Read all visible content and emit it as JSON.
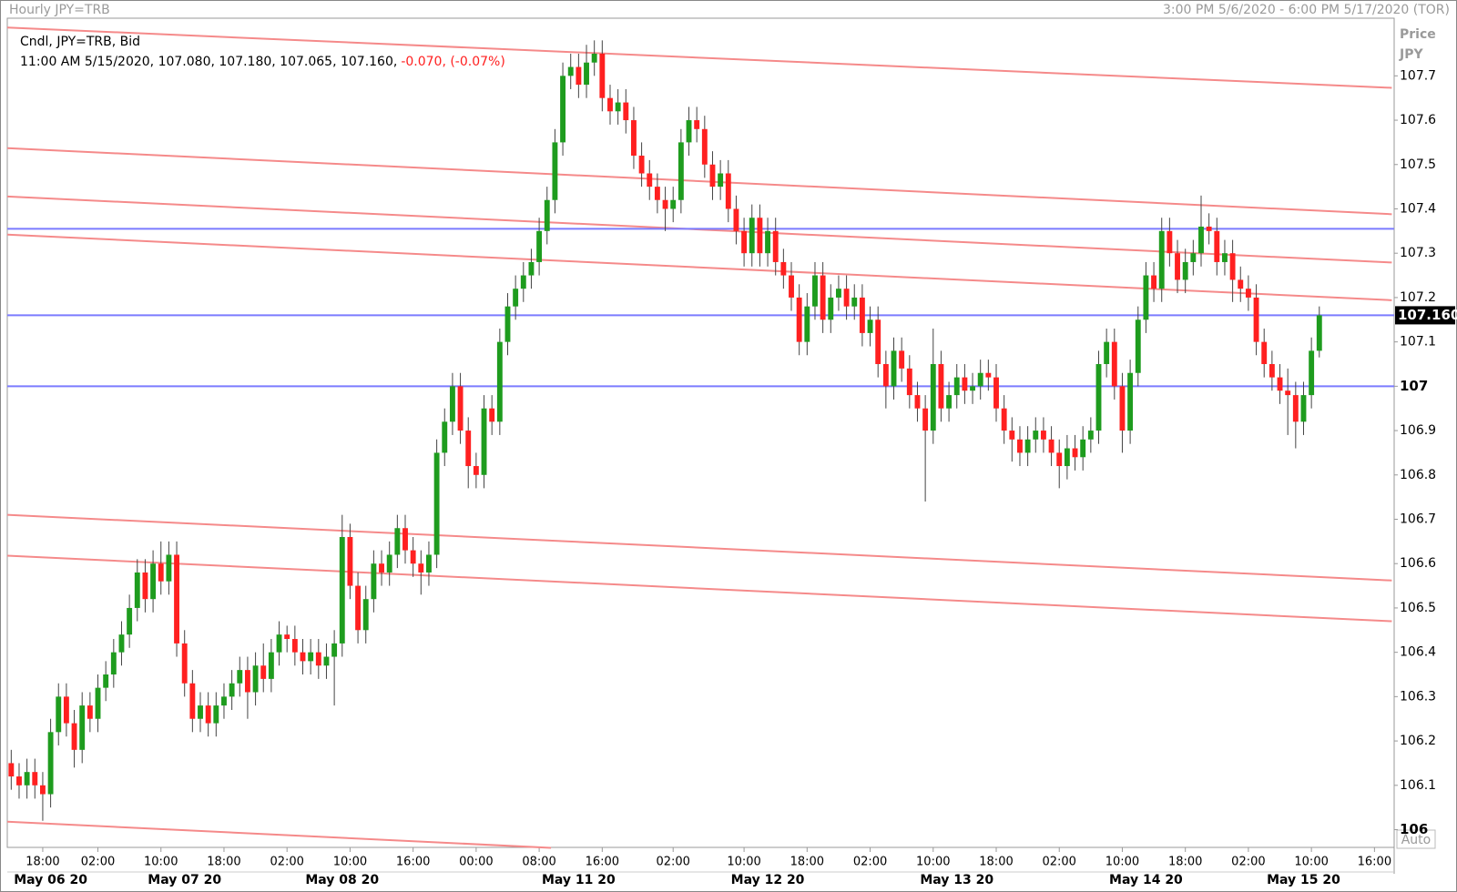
{
  "chart_data": {
    "type": "candlestick",
    "title": "Hourly JPY=TRB",
    "range_label": "3:00 PM 5/6/2020 - 6:00 PM 5/17/2020 (TOR)",
    "series_label": "Cndl, JPY=TRB, Bid",
    "ohlc_label": "11:00 AM 5/15/2020, 107.080, 107.180, 107.065, 107.160,",
    "change_label": "-0.070, (-0.07%)",
    "axis_title": "Price",
    "axis_unit": "JPY",
    "scale_label": "Auto",
    "up_color": "#1e9c1e",
    "down_color": "#ff2020",
    "line_color": "#f58a8a",
    "level_color": "#7b7bff",
    "open": [
      106.15,
      106.12,
      106.1,
      106.13,
      106.1,
      106.08,
      106.22,
      106.3,
      106.24,
      106.18,
      106.28,
      106.25,
      106.32,
      106.35,
      106.4,
      106.44,
      106.5,
      106.58,
      106.52,
      106.6,
      106.56,
      106.62,
      106.42,
      106.33,
      106.25,
      106.28,
      106.24,
      106.28,
      106.3,
      106.33,
      106.36,
      106.31,
      106.37,
      106.34,
      106.4,
      106.44,
      106.43,
      106.4,
      106.38,
      106.4,
      106.37,
      106.39,
      106.42,
      106.66,
      106.55,
      106.45,
      106.52,
      106.6,
      106.58,
      106.62,
      106.68,
      106.63,
      106.6,
      106.58,
      106.62,
      106.85,
      106.92,
      107.0,
      106.9,
      106.82,
      106.8,
      106.95,
      106.92,
      107.1,
      107.18,
      107.22,
      107.25,
      107.28,
      107.35,
      107.42,
      107.55,
      107.7,
      107.72,
      107.68,
      107.73,
      107.75,
      107.65,
      107.62,
      107.64,
      107.6,
      107.52,
      107.48,
      107.45,
      107.42,
      107.4,
      107.42,
      107.55,
      107.6,
      107.58,
      107.5,
      107.45,
      107.48,
      107.4,
      107.35,
      107.3,
      107.38,
      107.3,
      107.35,
      107.28,
      107.25,
      107.2,
      107.1,
      107.18,
      107.25,
      107.15,
      107.2,
      107.22,
      107.18,
      107.2,
      107.12,
      107.15,
      107.05,
      107.0,
      107.08,
      107.04,
      106.98,
      106.95,
      106.9,
      107.05,
      106.95,
      106.98,
      107.02,
      106.99,
      107.0,
      107.03,
      107.02,
      106.95,
      106.9,
      106.88,
      106.85,
      106.88,
      106.9,
      106.88,
      106.85,
      106.82,
      106.86,
      106.84,
      106.88,
      106.9,
      107.05,
      107.1,
      107.0,
      106.9,
      107.03,
      107.15,
      107.25,
      107.22,
      107.35,
      107.3,
      107.24,
      107.28,
      107.3,
      107.36,
      107.35,
      107.28,
      107.3,
      107.24,
      107.22,
      107.2,
      107.1,
      107.05,
      107.02,
      106.99,
      106.98,
      106.92,
      106.98,
      107.08
    ],
    "high": [
      106.18,
      106.15,
      106.16,
      106.16,
      106.13,
      106.25,
      106.33,
      106.33,
      106.27,
      106.31,
      106.31,
      106.35,
      106.38,
      106.43,
      106.47,
      106.53,
      106.61,
      106.61,
      106.63,
      106.65,
      106.65,
      106.65,
      106.45,
      106.36,
      106.31,
      106.31,
      106.31,
      106.33,
      106.36,
      106.39,
      106.39,
      106.4,
      106.42,
      106.43,
      106.47,
      106.46,
      106.46,
      106.43,
      106.43,
      106.43,
      106.42,
      106.45,
      106.71,
      106.69,
      106.58,
      106.55,
      106.63,
      106.63,
      106.65,
      106.71,
      106.71,
      106.66,
      106.63,
      106.65,
      106.88,
      106.95,
      107.03,
      107.03,
      106.93,
      106.85,
      106.98,
      106.98,
      107.13,
      107.21,
      107.25,
      107.28,
      107.31,
      107.38,
      107.45,
      107.58,
      107.73,
      107.75,
      107.75,
      107.77,
      107.78,
      107.78,
      107.68,
      107.67,
      107.67,
      107.63,
      107.55,
      107.51,
      107.48,
      107.45,
      107.45,
      107.58,
      107.63,
      107.63,
      107.61,
      107.53,
      107.51,
      107.51,
      107.43,
      107.38,
      107.41,
      107.41,
      107.38,
      107.38,
      107.31,
      107.28,
      107.23,
      107.21,
      107.28,
      107.28,
      107.23,
      107.25,
      107.25,
      107.23,
      107.23,
      107.18,
      107.18,
      107.08,
      107.11,
      107.11,
      107.07,
      107.01,
      106.98,
      107.13,
      107.08,
      107.01,
      107.05,
      107.05,
      107.03,
      107.06,
      107.06,
      107.05,
      106.98,
      106.93,
      106.91,
      106.91,
      106.93,
      106.93,
      106.91,
      106.88,
      106.89,
      106.89,
      106.91,
      106.93,
      107.08,
      107.13,
      107.13,
      107.03,
      107.06,
      107.18,
      107.28,
      107.28,
      107.38,
      107.38,
      107.33,
      107.31,
      107.33,
      107.43,
      107.39,
      107.38,
      107.33,
      107.33,
      107.27,
      107.25,
      107.23,
      107.13,
      107.08,
      107.05,
      107.04,
      107.01,
      107.01,
      107.11,
      107.18
    ],
    "low": [
      106.09,
      106.07,
      106.07,
      106.07,
      106.02,
      106.05,
      106.19,
      106.21,
      106.14,
      106.15,
      106.22,
      106.22,
      106.29,
      106.32,
      106.37,
      106.41,
      106.47,
      106.49,
      106.49,
      106.53,
      106.53,
      106.39,
      106.3,
      106.22,
      106.22,
      106.21,
      106.21,
      106.25,
      106.27,
      106.3,
      106.25,
      106.28,
      106.31,
      106.31,
      106.37,
      106.4,
      106.37,
      106.35,
      106.35,
      106.34,
      106.34,
      106.28,
      106.39,
      106.52,
      106.42,
      106.42,
      106.49,
      106.55,
      106.55,
      106.59,
      106.6,
      106.57,
      106.53,
      106.55,
      106.59,
      106.82,
      106.89,
      106.87,
      106.77,
      106.77,
      106.77,
      106.89,
      106.89,
      107.07,
      107.15,
      107.19,
      107.22,
      107.25,
      107.32,
      107.39,
      107.52,
      107.67,
      107.65,
      107.65,
      107.7,
      107.62,
      107.59,
      107.59,
      107.57,
      107.49,
      107.45,
      107.42,
      107.39,
      107.35,
      107.37,
      107.39,
      107.52,
      107.55,
      107.47,
      107.42,
      107.42,
      107.37,
      107.32,
      107.27,
      107.27,
      107.27,
      107.27,
      107.25,
      107.22,
      107.17,
      107.07,
      107.07,
      107.15,
      107.12,
      107.12,
      107.17,
      107.15,
      107.15,
      107.09,
      107.09,
      107.02,
      106.95,
      106.97,
      107.01,
      106.95,
      106.92,
      106.74,
      106.87,
      106.92,
      106.92,
      106.95,
      106.96,
      106.96,
      106.97,
      106.99,
      106.92,
      106.87,
      106.83,
      106.82,
      106.82,
      106.85,
      106.85,
      106.82,
      106.77,
      106.79,
      106.81,
      106.81,
      106.85,
      106.87,
      107.02,
      106.97,
      106.85,
      106.87,
      107.0,
      107.12,
      107.19,
      107.19,
      107.27,
      107.21,
      107.21,
      107.25,
      107.27,
      107.32,
      107.25,
      107.25,
      107.19,
      107.19,
      107.17,
      107.07,
      107.02,
      106.99,
      106.96,
      106.89,
      106.86,
      106.89,
      106.95,
      107.065
    ],
    "close": [
      106.12,
      106.1,
      106.13,
      106.1,
      106.08,
      106.22,
      106.3,
      106.24,
      106.18,
      106.28,
      106.25,
      106.32,
      106.35,
      106.4,
      106.44,
      106.5,
      106.58,
      106.52,
      106.6,
      106.56,
      106.62,
      106.42,
      106.33,
      106.25,
      106.28,
      106.24,
      106.28,
      106.3,
      106.33,
      106.36,
      106.31,
      106.37,
      106.34,
      106.4,
      106.44,
      106.43,
      106.4,
      106.38,
      106.4,
      106.37,
      106.39,
      106.42,
      106.66,
      106.55,
      106.45,
      106.52,
      106.6,
      106.58,
      106.62,
      106.68,
      106.63,
      106.6,
      106.58,
      106.62,
      106.85,
      106.92,
      107.0,
      106.9,
      106.82,
      106.8,
      106.95,
      106.92,
      107.1,
      107.18,
      107.22,
      107.25,
      107.28,
      107.35,
      107.42,
      107.55,
      107.7,
      107.72,
      107.68,
      107.73,
      107.75,
      107.65,
      107.62,
      107.64,
      107.6,
      107.52,
      107.48,
      107.45,
      107.42,
      107.4,
      107.42,
      107.55,
      107.6,
      107.58,
      107.5,
      107.45,
      107.48,
      107.4,
      107.35,
      107.3,
      107.38,
      107.3,
      107.35,
      107.28,
      107.25,
      107.2,
      107.1,
      107.18,
      107.25,
      107.15,
      107.2,
      107.22,
      107.18,
      107.2,
      107.12,
      107.15,
      107.05,
      107.0,
      107.08,
      107.04,
      106.98,
      106.95,
      106.9,
      107.05,
      106.95,
      106.98,
      107.02,
      106.99,
      107.0,
      107.03,
      107.02,
      106.95,
      106.9,
      106.88,
      106.85,
      106.88,
      106.9,
      106.88,
      106.85,
      106.82,
      106.86,
      106.84,
      106.88,
      106.9,
      107.05,
      107.1,
      107.0,
      106.9,
      107.03,
      107.15,
      107.25,
      107.22,
      107.35,
      107.3,
      107.24,
      107.28,
      107.3,
      107.36,
      107.35,
      107.28,
      107.3,
      107.24,
      107.22,
      107.2,
      107.1,
      107.05,
      107.02,
      106.99,
      106.98,
      106.92,
      106.98,
      107.08,
      107.16
    ],
    "trend_lines": [
      {
        "x": [
          -0.5,
          175.2
        ],
        "y": [
          107.809,
          107.673
        ]
      },
      {
        "x": [
          -0.5,
          175.2
        ],
        "y": [
          107.537,
          107.388
        ]
      },
      {
        "x": [
          -0.5,
          175.2
        ],
        "y": [
          107.428,
          107.279
        ]
      },
      {
        "x": [
          -0.5,
          175.2
        ],
        "y": [
          107.342,
          107.194
        ]
      },
      {
        "x": [
          -0.5,
          175.2
        ],
        "y": [
          106.71,
          106.562
        ]
      },
      {
        "x": [
          -0.5,
          175.2
        ],
        "y": [
          106.618,
          106.47
        ]
      },
      {
        "x": [
          -0.5,
          68.5
        ],
        "y": [
          106.018,
          105.959
        ]
      }
    ],
    "levels": [
      107.355,
      107.16,
      107.0
    ],
    "last_price": {
      "value": 107.16,
      "label": "107.160"
    },
    "xlim": [
      -0.5,
      175.5
    ],
    "ylim": [
      105.96,
      107.83
    ],
    "yticks": [
      106,
      106.1,
      106.2,
      106.3,
      106.4,
      106.5,
      106.6,
      106.7,
      106.8,
      106.9,
      107,
      107.1,
      107.2,
      107.3,
      107.4,
      107.5,
      107.6,
      107.7
    ],
    "xticks": [
      {
        "value": 4,
        "label": "18:00"
      },
      {
        "value": 11,
        "label": "02:00"
      },
      {
        "value": 19,
        "label": "10:00"
      },
      {
        "value": 27,
        "label": "18:00"
      },
      {
        "value": 35,
        "label": "02:00"
      },
      {
        "value": 43,
        "label": "10:00"
      },
      {
        "value": 51,
        "label": "16:00"
      },
      {
        "value": 59,
        "label": "00:00"
      },
      {
        "value": 67,
        "label": "08:00"
      },
      {
        "value": 75,
        "label": "16:00"
      },
      {
        "value": 84,
        "label": "02:00"
      },
      {
        "value": 93,
        "label": "10:00"
      },
      {
        "value": 101,
        "label": "18:00"
      },
      {
        "value": 109,
        "label": "02:00"
      },
      {
        "value": 117,
        "label": "10:00"
      },
      {
        "value": 125,
        "label": "18:00"
      },
      {
        "value": 133,
        "label": "02:00"
      },
      {
        "value": 141,
        "label": "10:00"
      },
      {
        "value": 149,
        "label": "18:00"
      },
      {
        "value": 157,
        "label": "02:00"
      },
      {
        "value": 165,
        "label": "10:00"
      },
      {
        "value": 173,
        "label": "16:00"
      }
    ],
    "date_ticks": [
      {
        "value": 5,
        "label": "May 06 20"
      },
      {
        "value": 22,
        "label": "May 07 20"
      },
      {
        "value": 42,
        "label": "May 08 20"
      },
      {
        "value": 72,
        "label": "May 11 20"
      },
      {
        "value": 96,
        "label": "May 12 20"
      },
      {
        "value": 120,
        "label": "May 13 20"
      },
      {
        "value": 144,
        "label": "May 14 20"
      },
      {
        "value": 164,
        "label": "May 15 20"
      }
    ]
  }
}
